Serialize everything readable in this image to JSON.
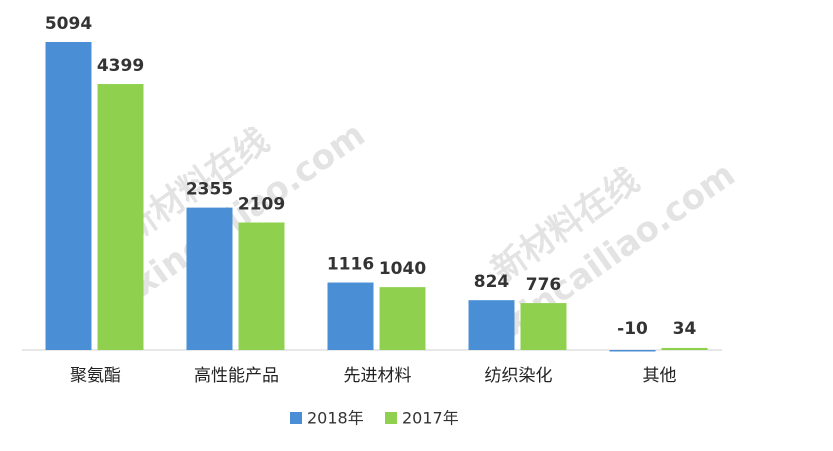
{
  "chart_data": {
    "type": "bar",
    "categories": [
      "聚氨酯",
      "高性能产品",
      "先进材料",
      "纺织染化",
      "其他"
    ],
    "series": [
      {
        "name": "2018年",
        "color": "#4a8fd6",
        "values": [
          5094,
          2355,
          1116,
          824,
          -10
        ]
      },
      {
        "name": "2017年",
        "color": "#8fd14f",
        "values": [
          4399,
          2109,
          1040,
          776,
          34
        ]
      }
    ],
    "watermark": [
      "新材料在线",
      "xincailiao.com"
    ]
  }
}
